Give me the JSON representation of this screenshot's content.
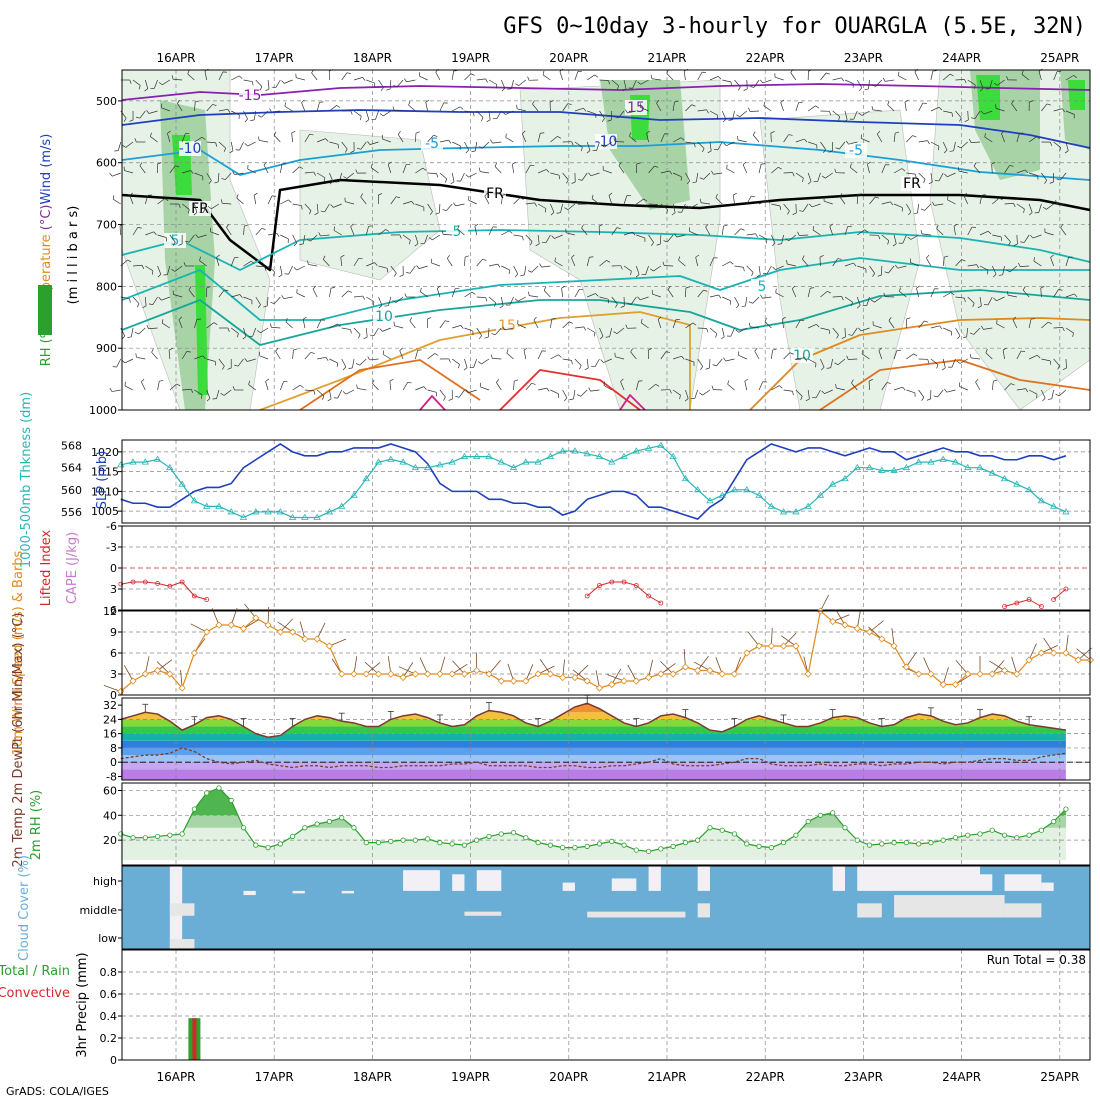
{
  "title": "GFS 0~10day 3-hourly for OUARGLA (5.5E, 32N)",
  "credit": "GrADS: COLA/IGES",
  "dates": [
    "16APR",
    "17APR",
    "18APR",
    "19APR",
    "20APR",
    "21APR",
    "22APR",
    "23APR",
    "24APR",
    "25APR"
  ],
  "colors": {
    "green_dark": "#2ca02c",
    "blue_slp": "#1f3fbf",
    "cyan_thk": "#2bb5b5",
    "red_li": "#d62728",
    "orange_wind": "#e08a1e",
    "brown_temp": "#7a3b2e",
    "cloud_blue": "#6aaed6",
    "cloud_white": "#f2f0f5",
    "cloud_grey": "#e6e6e6"
  },
  "chart_data": [
    {
      "panel": "upper_air",
      "type": "heatmap",
      "ylabel_parts": [
        "Wind (m/s)",
        "Temperature (°C)",
        "RH (%)"
      ],
      "ylabel2": "(m i l l i b a r s)",
      "yticks": [
        500,
        600,
        700,
        800,
        900,
        1000
      ],
      "contour_labels": [
        "-15",
        "-10",
        "-5",
        "FR",
        "5",
        "10",
        "15"
      ]
    },
    {
      "panel": "thickness_slp",
      "type": "line",
      "ylabel_left": "1000-500mb Thkness (dm)",
      "ylabel_right": "SLP (mb)",
      "yticks_left": [
        556,
        560,
        564,
        568
      ],
      "yticks_right": [
        1005,
        1010,
        1015,
        1020
      ],
      "series": [
        {
          "name": "SLP (mb)",
          "values": [
            1008,
            1007,
            1007,
            1006,
            1006,
            1008,
            1010,
            1011,
            1011,
            1012,
            1016,
            1018,
            1020,
            1022,
            1020,
            1019,
            1019,
            1020,
            1020,
            1021,
            1021,
            1021,
            1022,
            1021,
            1020,
            1017,
            1012,
            1010,
            1010,
            1010,
            1008,
            1008,
            1007,
            1007,
            1006,
            1006,
            1004,
            1005,
            1008,
            1009,
            1010,
            1010,
            1009,
            1006,
            1006,
            1005,
            1004,
            1003,
            1006,
            1008,
            1013,
            1018,
            1020,
            1022,
            1021,
            1020,
            1021,
            1021,
            1020,
            1019,
            1020,
            1021,
            1020,
            1020,
            1018,
            1019,
            1020,
            1021,
            1020,
            1020,
            1019,
            1019,
            1018,
            1018,
            1019,
            1019,
            1018,
            1019
          ]
        },
        {
          "name": "Thickness (dm)",
          "values": [
            564.5,
            565,
            565,
            565.5,
            564,
            561,
            558,
            557,
            557,
            556,
            555,
            556,
            556,
            556,
            555,
            555,
            555,
            556,
            557,
            559,
            562,
            565,
            565.5,
            565,
            564,
            564,
            564.5,
            565,
            566,
            566,
            566,
            565,
            564,
            565,
            565,
            566,
            567,
            567,
            566.5,
            566,
            565,
            566,
            567,
            567.5,
            568,
            566,
            562,
            560,
            558,
            559,
            560,
            560,
            559,
            557,
            556,
            556,
            557,
            559,
            561,
            562,
            564,
            564,
            563.5,
            563.5,
            564,
            565,
            565,
            565.5,
            565,
            564,
            564,
            563,
            562,
            561,
            560,
            558,
            557,
            556
          ]
        }
      ]
    },
    {
      "panel": "lifted_index",
      "type": "line",
      "ylabel_left": "Lifted Index",
      "ylabel_right": "CAPE (J/kg)",
      "yticks_labels": [
        "-6",
        "-3",
        "0",
        "3",
        "6"
      ],
      "yticks": [
        -6,
        -3,
        0,
        3,
        6
      ],
      "segments": [
        {
          "x0": 0,
          "values": [
            2.3,
            2,
            2,
            2.2,
            2.6,
            2,
            4,
            4.5
          ]
        },
        {
          "x0": 38,
          "values": [
            4,
            2.5,
            2,
            2,
            2.5,
            4,
            5
          ]
        },
        {
          "x0": 72,
          "values": [
            5.5,
            5,
            4.5,
            5.5
          ]
        },
        {
          "x0": 76,
          "values": [
            4.5,
            3
          ]
        }
      ]
    },
    {
      "panel": "wind10m",
      "type": "line",
      "ylabel": "10m Wind Speed (m/s) & Barbs",
      "yticks": [
        0,
        3,
        6,
        9,
        12
      ],
      "series": [
        {
          "name": "10m Wind Speed",
          "values": [
            0.5,
            2,
            3,
            3.5,
            3,
            1,
            6,
            9,
            10,
            10,
            9.5,
            11,
            10,
            9,
            9,
            8,
            8,
            7,
            3,
            3,
            3,
            3,
            3,
            2.5,
            3,
            3,
            3,
            3,
            3,
            3.5,
            3,
            2,
            2,
            2,
            3,
            3,
            2.5,
            2.5,
            2,
            1,
            1.5,
            2,
            2,
            2.5,
            3,
            3,
            4,
            3.5,
            3.5,
            3,
            3,
            6,
            7,
            7,
            7,
            7,
            3,
            12,
            10.5,
            10,
            9.5,
            9,
            8,
            7,
            4,
            3,
            3,
            1.5,
            1.5,
            3,
            3,
            3,
            3.5,
            3,
            5,
            6,
            6,
            6,
            5,
            5
          ]
        }
      ]
    },
    {
      "panel": "temp2m",
      "type": "area",
      "ylabel": "2m Temp 2m DewPt (6hr Min/Max) (°C)",
      "yticks": [
        -8,
        0,
        8,
        16,
        24,
        32
      ],
      "series": [
        {
          "name": "2m Temp",
          "values": [
            24,
            26,
            28,
            27,
            23,
            18,
            21,
            25,
            26,
            24,
            20,
            16,
            14,
            15,
            20,
            24,
            26,
            25,
            23,
            22,
            20,
            20,
            24,
            26,
            27,
            25,
            22,
            20,
            21,
            26,
            29,
            28,
            26,
            22,
            20,
            23,
            27,
            31,
            33,
            30,
            26,
            22,
            20,
            22,
            26,
            27,
            25,
            22,
            18,
            17,
            20,
            24,
            26,
            24,
            22,
            20,
            20,
            22,
            25,
            26,
            25,
            22,
            20,
            21,
            25,
            27,
            26,
            23,
            21,
            22,
            25,
            27,
            26,
            23,
            21,
            20,
            19,
            18
          ]
        },
        {
          "name": "2m DewPt",
          "values": [
            2,
            3,
            4,
            4,
            5,
            8,
            6,
            2,
            0,
            -1,
            0,
            1,
            -1,
            -2,
            -3,
            -2,
            -2,
            -3,
            -2,
            -2,
            -2,
            -3,
            -3,
            -2,
            -2,
            -2,
            -2,
            -1,
            -1,
            0,
            -2,
            -2,
            -2,
            -2,
            -3,
            -3,
            -2,
            -2,
            -3,
            -3,
            -2,
            -2,
            -1,
            0,
            2,
            -1,
            -2,
            -2,
            -2,
            -1,
            0,
            2,
            2,
            -1,
            -2,
            -2,
            -2,
            -1,
            -2,
            -2,
            -1,
            -1,
            -2,
            -1,
            -1,
            0,
            0,
            -1,
            0,
            0,
            1,
            2,
            2,
            1,
            1,
            3,
            4,
            5
          ]
        }
      ]
    },
    {
      "panel": "rh2m",
      "type": "area",
      "ylabel": "2m RH (%)",
      "yticks": [
        20,
        40,
        60
      ],
      "series": [
        {
          "name": "2m RH",
          "values": [
            25,
            22,
            22,
            23,
            24,
            25,
            45,
            58,
            62,
            52,
            30,
            16,
            14,
            17,
            23,
            30,
            33,
            35,
            38,
            30,
            18,
            18,
            19,
            20,
            20,
            21,
            18,
            17,
            16,
            20,
            23,
            25,
            26,
            22,
            18,
            16,
            14,
            14,
            15,
            17,
            19,
            16,
            12,
            11,
            13,
            15,
            18,
            20,
            30,
            28,
            25,
            17,
            15,
            14,
            18,
            24,
            35,
            40,
            42,
            30,
            20,
            16,
            17,
            18,
            18,
            17,
            18,
            20,
            22,
            24,
            25,
            28,
            24,
            22,
            24,
            28,
            35,
            45
          ]
        }
      ]
    },
    {
      "panel": "cloud_cover",
      "type": "heatmap",
      "ylabel": "Cloud Cover (%)",
      "yticks": [
        "high",
        "middle",
        "low"
      ]
    },
    {
      "panel": "precip",
      "type": "bar",
      "ylabel_left_parts": [
        "Total / Rain",
        "Convective"
      ],
      "ylabel": "3hr Precip (mm)",
      "yticks": [
        0,
        0.2,
        0.4,
        0.6,
        0.8
      ],
      "run_total_label": "Run Total = 0.38",
      "bars": [
        {
          "x": 6,
          "total": 0.38,
          "convective": 0.38
        }
      ]
    }
  ]
}
